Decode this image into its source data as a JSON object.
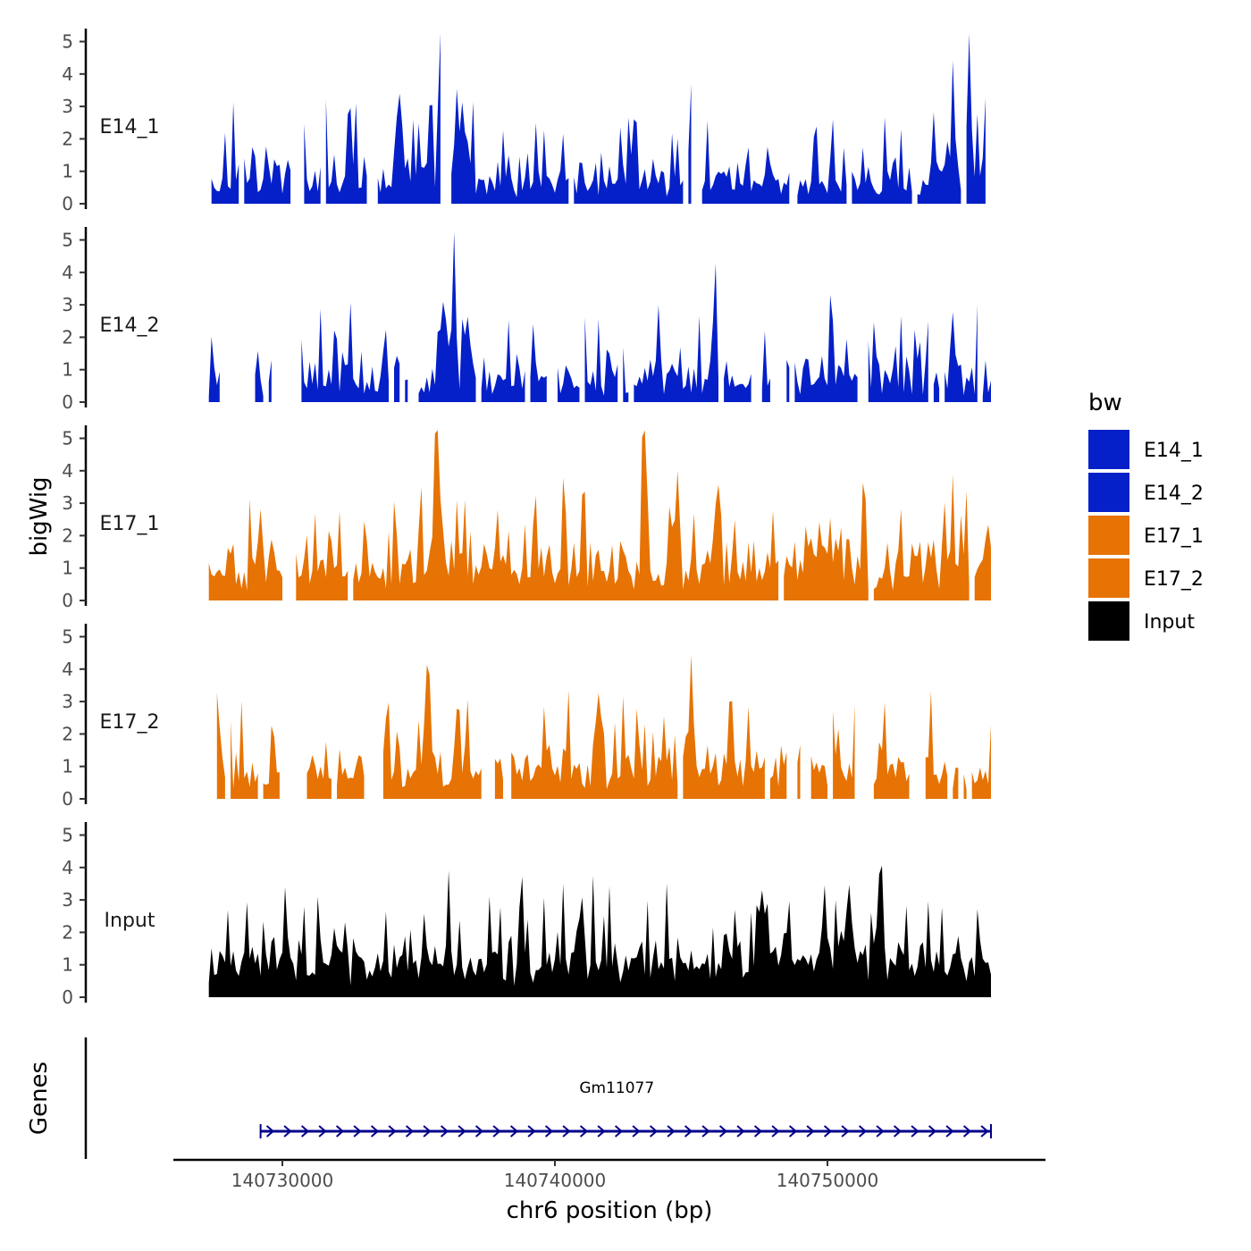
{
  "chart_data": {
    "type": "area",
    "title": "",
    "ylabel": "bigWig",
    "genes_label": "Genes",
    "xlabel": "chr6 position (bp)",
    "xlim": [
      140726000,
      140758000
    ],
    "data_x_range": [
      140727300,
      140756000
    ],
    "ylim": [
      0,
      5.4
    ],
    "y_ticks": [
      "0",
      "1",
      "2",
      "3",
      "4",
      "5"
    ],
    "x_ticks": [
      {
        "value": 140730000,
        "label": "140730000"
      },
      {
        "value": 140740000,
        "label": "140740000"
      },
      {
        "value": 140750000,
        "label": "140750000"
      }
    ],
    "legend": {
      "title": "bw",
      "position": "right",
      "entries": [
        {
          "label": "E14_1",
          "color": "#0520C8"
        },
        {
          "label": "E14_2",
          "color": "#0520C8"
        },
        {
          "label": "E17_1",
          "color": "#E67304"
        },
        {
          "label": "E17_2",
          "color": "#E67304"
        },
        {
          "label": "Input",
          "color": "#000000"
        }
      ]
    },
    "series": [
      {
        "name": "E14_1",
        "color": "#0520C8",
        "seed": 11,
        "base": 0.55,
        "noise": 1.1,
        "spikes": 0.14,
        "gapProb": 0.05,
        "gaps": [
          [
            140730400,
            140730700
          ]
        ],
        "peaks": [
          {
            "x": 140735800,
            "y": 5.1,
            "w": 110
          },
          {
            "x": 140736600,
            "y": 2.1,
            "w": 260
          },
          {
            "x": 140745000,
            "y": 3.0,
            "w": 100
          },
          {
            "x": 140754600,
            "y": 2.7,
            "w": 100
          },
          {
            "x": 140755200,
            "y": 3.8,
            "w": 110
          },
          {
            "x": 140755800,
            "y": 2.8,
            "w": 90
          }
        ]
      },
      {
        "name": "E14_2",
        "color": "#0520C8",
        "seed": 23,
        "base": 0.45,
        "noise": 1.1,
        "spikes": 0.14,
        "gapProb": 0.1,
        "gaps": [
          [
            140727800,
            140728900
          ],
          [
            140729700,
            140730600
          ],
          [
            140748000,
            140748400
          ],
          [
            140751200,
            140751400
          ]
        ],
        "peaks": [
          {
            "x": 140736300,
            "y": 4.9,
            "w": 90
          },
          {
            "x": 140735900,
            "y": 2.4,
            "w": 200
          },
          {
            "x": 140736800,
            "y": 1.9,
            "w": 200
          },
          {
            "x": 140745800,
            "y": 2.2,
            "w": 120
          }
        ]
      },
      {
        "name": "E17_1",
        "color": "#E67304",
        "seed": 37,
        "base": 0.8,
        "noise": 1.2,
        "spikes": 0.16,
        "gapProb": 0.02,
        "gaps": [
          [
            140730100,
            140730400
          ]
        ],
        "peaks": [
          {
            "x": 140735700,
            "y": 3.6,
            "w": 200
          },
          {
            "x": 140743300,
            "y": 3.2,
            "w": 110
          },
          {
            "x": 140744500,
            "y": 3.0,
            "w": 100
          },
          {
            "x": 140754600,
            "y": 2.5,
            "w": 90
          },
          {
            "x": 140729200,
            "y": 1.9,
            "w": 90
          }
        ]
      },
      {
        "name": "E17_2",
        "color": "#E67304",
        "seed": 53,
        "base": 0.7,
        "noise": 1.2,
        "spikes": 0.16,
        "gapProb": 0.05,
        "gaps": [
          [
            140730000,
            140730800
          ],
          [
            140733100,
            140733400
          ],
          [
            140737400,
            140737700
          ],
          [
            140751100,
            140751400
          ],
          [
            140753100,
            140753500
          ]
        ],
        "peaks": [
          {
            "x": 140735300,
            "y": 3.5,
            "w": 110
          },
          {
            "x": 140745000,
            "y": 3.6,
            "w": 100
          },
          {
            "x": 140741600,
            "y": 2.7,
            "w": 100
          },
          {
            "x": 140749200,
            "y": 2.8,
            "w": 90
          }
        ]
      },
      {
        "name": "Input",
        "color": "#000000",
        "seed": 71,
        "base": 1.0,
        "noise": 1.0,
        "spikes": 0.18,
        "gapProb": 0,
        "gaps": [],
        "peaks": [
          {
            "x": 140752000,
            "y": 3.4,
            "w": 90
          },
          {
            "x": 140747600,
            "y": 2.8,
            "w": 120
          },
          {
            "x": 140750800,
            "y": 2.7,
            "w": 140
          },
          {
            "x": 140749900,
            "y": 2.4,
            "w": 120
          }
        ]
      }
    ],
    "gene": {
      "name": "Gm11077",
      "start": 140729200,
      "end": 140756000,
      "strand": "+",
      "color": "#00008B"
    }
  }
}
